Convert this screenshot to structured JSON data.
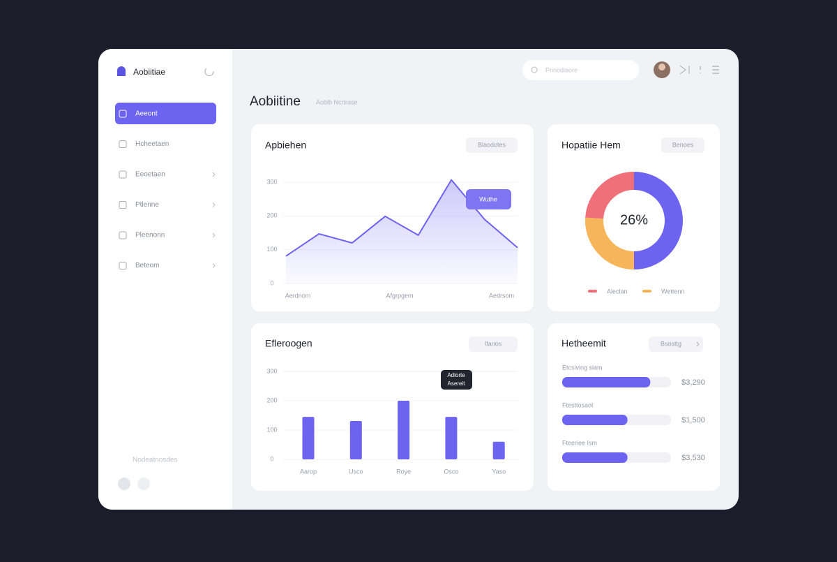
{
  "sidebar": {
    "brand": "Aobiitiae",
    "nav": [
      "Aeeont",
      "Hcheetaen",
      "Eeoetaen",
      "Ptlenne",
      "Pleenonn",
      "Beteom"
    ],
    "footer": "Nodeatnosdes"
  },
  "header": {
    "search": "Pnnodiaore",
    "title": "Aobiitine",
    "subtitle": "Aoblb Ncrtrase"
  },
  "area_card": {
    "type": "area",
    "title": "Apbiehen",
    "button": "Blaodotes",
    "tooltip": "Wuthe",
    "color": "#6c63f0",
    "ylim": [
      0,
      300
    ],
    "yticks": [
      0,
      100,
      200,
      300
    ],
    "values": [
      81,
      147,
      120,
      199,
      143,
      307,
      190,
      106
    ],
    "x_labels": [
      "Aerdnom",
      "Afgrpgem",
      "Aedrsom"
    ]
  },
  "donut_card": {
    "type": "pie",
    "title": "Hopatiie Hem",
    "button": "Benoes",
    "center_label": "26%",
    "series": [
      {
        "name": null,
        "color": "#6c63f0",
        "value": 50
      },
      {
        "name": "Wettenn",
        "color": "#f6b55a",
        "value": 26
      },
      {
        "name": "Aleclan",
        "color": "#f0707a",
        "value": 24
      }
    ]
  },
  "bar_card": {
    "type": "bar",
    "title": "Efleroogen",
    "button": "Ifanos",
    "tooltip": [
      "Adlorte",
      "Asereit"
    ],
    "color": "#6c63f0",
    "ylim": [
      0,
      300
    ],
    "yticks": [
      0,
      100,
      200,
      300
    ],
    "categories": [
      "Aarop",
      "Usco",
      "Roye",
      "Osco",
      "Yaso"
    ],
    "values": [
      145,
      131,
      200,
      145,
      60
    ]
  },
  "progress_card": {
    "title": "Hetheemit",
    "button": "Bsosttg",
    "color": "#6c63f0",
    "rows": [
      {
        "label": "Etcsiving siam",
        "percent": 81,
        "amount": "$3,290"
      },
      {
        "label": "Ftesttosaot",
        "percent": 60,
        "amount": "$1,500"
      },
      {
        "label": "Fteeriee Ism",
        "percent": 60,
        "amount": "$3,530"
      }
    ]
  }
}
